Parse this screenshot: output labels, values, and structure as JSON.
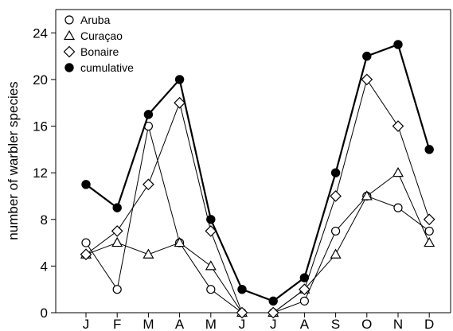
{
  "chart_data": {
    "type": "line",
    "title": "",
    "xlabel": "",
    "ylabel": "number of warbler species",
    "categories": [
      "J",
      "F",
      "M",
      "A",
      "M",
      "J",
      "J",
      "A",
      "S",
      "O",
      "N",
      "D"
    ],
    "ylim": [
      0,
      26
    ],
    "yticks": [
      0,
      4,
      8,
      12,
      16,
      20,
      24
    ],
    "grid": false,
    "legend_position": "top-left",
    "series": [
      {
        "name": "Aruba",
        "marker": "open-circle",
        "values": [
          6,
          2,
          16,
          6,
          2,
          0,
          0,
          1,
          7,
          10,
          9,
          7
        ]
      },
      {
        "name": "Curaçao",
        "marker": "open-triangle",
        "values": [
          5,
          6,
          5,
          6,
          4,
          0,
          0,
          2,
          5,
          10,
          12,
          6
        ]
      },
      {
        "name": "Bonaire",
        "marker": "open-diamond",
        "values": [
          5,
          7,
          11,
          18,
          7,
          0,
          0,
          2,
          10,
          20,
          16,
          8
        ]
      },
      {
        "name": "cumulative",
        "marker": "filled-circle",
        "values": [
          11,
          9,
          17,
          20,
          8,
          2,
          1,
          3,
          12,
          22,
          23,
          14
        ]
      }
    ]
  }
}
